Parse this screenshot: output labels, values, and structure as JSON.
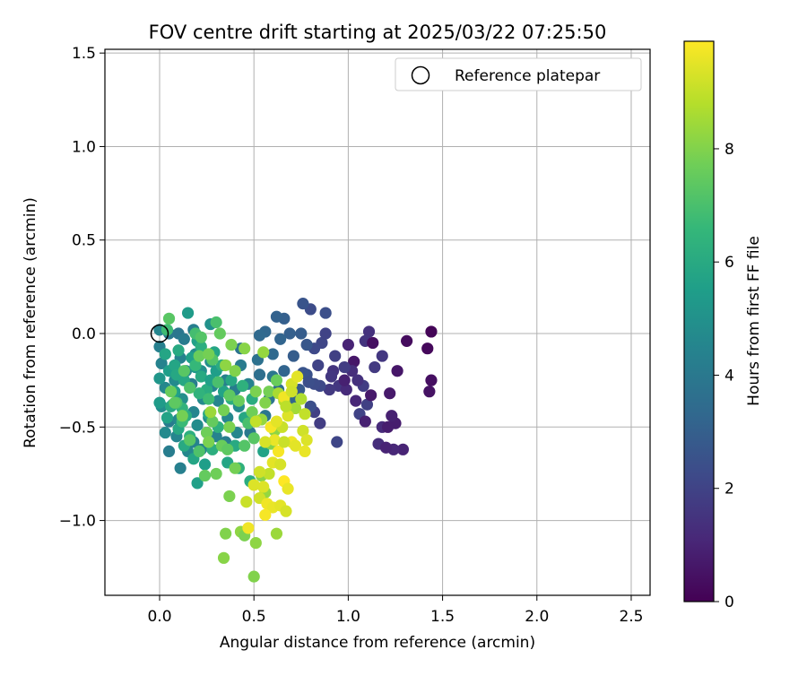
{
  "chart_data": {
    "type": "scatter",
    "title": "FOV centre drift starting at 2025/03/22 07:25:50",
    "xlabel": "Angular distance from reference (arcmin)",
    "ylabel": "Rotation from reference (arcmin)",
    "xlim": [
      -0.29,
      2.6
    ],
    "ylim": [
      -1.4,
      1.52
    ],
    "xticks": [
      0.0,
      0.5,
      1.0,
      1.5,
      2.0,
      2.5
    ],
    "xtick_labels": [
      "0.0",
      "0.5",
      "1.0",
      "1.5",
      "2.0",
      "2.5"
    ],
    "yticks": [
      -1.0,
      -0.5,
      0.0,
      0.5,
      1.0,
      1.5
    ],
    "ytick_labels": [
      "−1.0",
      "−0.5",
      "0.0",
      "0.5",
      "1.0",
      "1.5"
    ],
    "grid": true,
    "legend": {
      "position": "top-right",
      "entries": [
        "Reference platepar"
      ]
    },
    "reference_point": {
      "x": 0.0,
      "y": 0.0,
      "label": "Reference platepar"
    },
    "colorbar": {
      "label": "Hours from first FF file",
      "colormap": "viridis",
      "range": [
        0,
        9.9
      ],
      "ticks": [
        0,
        2,
        4,
        6,
        8
      ],
      "tick_labels": [
        "0",
        "2",
        "4",
        "6",
        "8"
      ]
    },
    "points": [
      [
        1.44,
        0.01,
        0.1
      ],
      [
        1.42,
        -0.08,
        0.2
      ],
      [
        1.31,
        -0.04,
        0.3
      ],
      [
        1.44,
        -0.25,
        0.4
      ],
      [
        1.43,
        -0.31,
        0.5
      ],
      [
        1.26,
        -0.2,
        0.6
      ],
      [
        1.22,
        -0.32,
        0.7
      ],
      [
        1.25,
        -0.48,
        0.8
      ],
      [
        1.23,
        -0.44,
        0.9
      ],
      [
        1.29,
        -0.62,
        1.0
      ],
      [
        1.24,
        -0.62,
        1.1
      ],
      [
        1.18,
        -0.5,
        1.2
      ],
      [
        1.16,
        -0.59,
        1.3
      ],
      [
        1.11,
        0.01,
        1.4
      ],
      [
        1.09,
        -0.04,
        1.5
      ],
      [
        1.18,
        -0.12,
        1.6
      ],
      [
        1.14,
        -0.18,
        1.7
      ],
      [
        1.08,
        -0.28,
        1.8
      ],
      [
        1.1,
        -0.38,
        1.9
      ],
      [
        1.06,
        -0.43,
        2.0
      ],
      [
        0.94,
        -0.58,
        2.1
      ],
      [
        1.13,
        -0.05,
        0.4
      ],
      [
        1.03,
        -0.15,
        0.6
      ],
      [
        1.12,
        -0.33,
        0.7
      ],
      [
        1.09,
        -0.47,
        0.9
      ],
      [
        1.04,
        -0.36,
        1.1
      ],
      [
        1.2,
        -0.61,
        1.0
      ],
      [
        1.21,
        -0.5,
        0.8
      ],
      [
        1.02,
        -0.2,
        1.3
      ],
      [
        0.95,
        -0.28,
        1.6
      ],
      [
        0.85,
        -0.48,
        1.8
      ],
      [
        0.82,
        -0.42,
        1.9
      ],
      [
        0.92,
        -0.2,
        1.5
      ],
      [
        0.86,
        -0.05,
        2.1
      ],
      [
        0.8,
        0.13,
        2.3
      ],
      [
        0.88,
        0.11,
        2.4
      ],
      [
        0.76,
        0.16,
        2.6
      ],
      [
        0.82,
        -0.08,
        2.2
      ],
      [
        0.84,
        -0.17,
        2.0
      ],
      [
        0.9,
        -0.3,
        1.7
      ],
      [
        0.78,
        -0.22,
        2.5
      ],
      [
        0.85,
        -0.28,
        2.2
      ],
      [
        0.8,
        -0.39,
        2.4
      ],
      [
        0.74,
        -0.3,
        2.8
      ],
      [
        0.71,
        -0.12,
        2.9
      ],
      [
        0.66,
        0.08,
        3.0
      ],
      [
        0.62,
        0.09,
        3.1
      ],
      [
        0.75,
        0.0,
        2.9
      ],
      [
        0.69,
        0.0,
        3.0
      ],
      [
        0.56,
        0.01,
        3.3
      ],
      [
        0.53,
        -0.01,
        3.4
      ],
      [
        0.64,
        -0.03,
        3.2
      ],
      [
        0.78,
        -0.06,
        2.7
      ],
      [
        0.6,
        -0.11,
        3.4
      ],
      [
        0.53,
        -0.22,
        3.6
      ],
      [
        0.66,
        -0.2,
        3.2
      ],
      [
        0.63,
        -0.3,
        3.5
      ],
      [
        0.66,
        -0.35,
        3.7
      ],
      [
        0.7,
        -0.35,
        3.2
      ],
      [
        0.88,
        0.0,
        2.0
      ],
      [
        0.93,
        -0.12,
        1.9
      ],
      [
        0.98,
        -0.18,
        1.8
      ],
      [
        0.91,
        -0.23,
        1.6
      ],
      [
        1.0,
        -0.06,
        1.0
      ],
      [
        0.99,
        -0.3,
        1.2
      ],
      [
        1.05,
        -0.25,
        1.4
      ],
      [
        0.98,
        -0.25,
        0.9
      ],
      [
        0.82,
        -0.27,
        2.3
      ],
      [
        0.76,
        -0.21,
        2.6
      ],
      [
        0.79,
        -0.26,
        2.4
      ],
      [
        0.0,
        0.02,
        4.5
      ],
      [
        0.05,
        0.0,
        4.0
      ],
      [
        0.1,
        0.0,
        3.9
      ],
      [
        0.18,
        0.02,
        4.2
      ],
      [
        0.27,
        0.05,
        5.0
      ],
      [
        0.13,
        -0.03,
        4.1
      ],
      [
        0.01,
        -0.16,
        4.4
      ],
      [
        0.03,
        -0.29,
        4.6
      ],
      [
        0.07,
        -0.38,
        4.3
      ],
      [
        0.05,
        -0.47,
        4.1
      ],
      [
        0.03,
        -0.53,
        4.7
      ],
      [
        0.09,
        -0.55,
        4.5
      ],
      [
        0.11,
        -0.72,
        4.3
      ],
      [
        0.05,
        -0.63,
        4.2
      ],
      [
        0.15,
        -0.63,
        4.6
      ],
      [
        0.18,
        -0.58,
        4.4
      ],
      [
        0.2,
        -0.49,
        4.8
      ],
      [
        0.25,
        -0.53,
        4.5
      ],
      [
        0.23,
        -0.35,
        4.7
      ],
      [
        0.22,
        -0.2,
        4.9
      ],
      [
        0.14,
        -0.2,
        4.6
      ],
      [
        0.11,
        -0.13,
        4.4
      ],
      [
        0.19,
        -0.11,
        4.8
      ],
      [
        0.27,
        -0.15,
        4.9
      ],
      [
        0.35,
        -0.25,
        4.3
      ],
      [
        0.31,
        -0.36,
        4.5
      ],
      [
        0.36,
        -0.45,
        4.6
      ],
      [
        0.42,
        -0.39,
        4.8
      ],
      [
        0.43,
        -0.17,
        4.1
      ],
      [
        0.47,
        -0.27,
        4.4
      ],
      [
        0.4,
        -0.3,
        4.2
      ],
      [
        0.58,
        -0.35,
        3.8
      ],
      [
        0.56,
        -0.44,
        3.9
      ],
      [
        0.48,
        -0.53,
        4.0
      ],
      [
        0.43,
        -0.08,
        3.8
      ],
      [
        0.52,
        -0.14,
        3.7
      ],
      [
        0.6,
        -0.23,
        3.9
      ],
      [
        0.1,
        -0.46,
        4.6
      ],
      [
        0.22,
        -0.62,
        4.4
      ],
      [
        0.0,
        -0.07,
        4.3
      ],
      [
        0.01,
        -0.39,
        4.8
      ],
      [
        0.08,
        -0.25,
        4.7
      ],
      [
        0.12,
        -0.35,
        4.9
      ],
      [
        0.17,
        -0.27,
        4.2
      ],
      [
        0.18,
        -0.42,
        4.5
      ],
      [
        0.26,
        -0.45,
        4.7
      ],
      [
        0.3,
        -0.55,
        4.4
      ],
      [
        0.35,
        -0.58,
        4.2
      ],
      [
        0.41,
        -0.53,
        4.6
      ],
      [
        0.28,
        -0.28,
        4.5
      ],
      [
        0.0,
        -0.24,
        5.2
      ],
      [
        0.05,
        -0.2,
        5.5
      ],
      [
        0.08,
        -0.17,
        5.8
      ],
      [
        0.1,
        -0.09,
        6.0
      ],
      [
        0.15,
        0.11,
        5.4
      ],
      [
        0.2,
        -0.04,
        5.6
      ],
      [
        0.22,
        -0.07,
        6.2
      ],
      [
        0.29,
        -0.1,
        5.8
      ],
      [
        0.3,
        -0.2,
        5.5
      ],
      [
        0.34,
        -0.31,
        5.7
      ],
      [
        0.38,
        -0.25,
        5.9
      ],
      [
        0.25,
        -0.3,
        6.1
      ],
      [
        0.19,
        -0.18,
        5.3
      ],
      [
        0.13,
        -0.25,
        5.9
      ],
      [
        0.08,
        -0.31,
        5.6
      ],
      [
        0.0,
        -0.37,
        5.4
      ],
      [
        0.04,
        -0.45,
        5.7
      ],
      [
        0.1,
        -0.51,
        5.9
      ],
      [
        0.13,
        -0.6,
        6.0
      ],
      [
        0.18,
        -0.67,
        5.8
      ],
      [
        0.2,
        -0.8,
        5.6
      ],
      [
        0.24,
        -0.7,
        5.5
      ],
      [
        0.28,
        -0.62,
        6.2
      ],
      [
        0.31,
        -0.5,
        6.3
      ],
      [
        0.26,
        -0.43,
        5.9
      ],
      [
        0.14,
        -0.44,
        6.1
      ],
      [
        0.06,
        -0.39,
        6.0
      ],
      [
        0.03,
        -0.11,
        5.8
      ],
      [
        0.17,
        -0.13,
        5.6
      ],
      [
        0.21,
        -0.32,
        6.4
      ],
      [
        0.33,
        -0.17,
        6.1
      ],
      [
        0.38,
        -0.35,
        6.2
      ],
      [
        0.45,
        -0.45,
        5.9
      ],
      [
        0.4,
        -0.6,
        6.0
      ],
      [
        0.36,
        -0.69,
        5.8
      ],
      [
        0.42,
        -0.72,
        6.3
      ],
      [
        0.48,
        -0.79,
        6.1
      ],
      [
        0.55,
        -0.63,
        5.7
      ],
      [
        0.44,
        -0.28,
        6.3
      ],
      [
        0.49,
        -0.35,
        6.1
      ],
      [
        0.09,
        -0.22,
        5.9
      ],
      [
        0.12,
        -0.4,
        6.4
      ],
      [
        0.16,
        -0.55,
        6.2
      ],
      [
        0.22,
        -0.23,
        6.0
      ],
      [
        0.27,
        -0.25,
        5.6
      ],
      [
        0.04,
        0.02,
        6.8
      ],
      [
        0.05,
        0.08,
        7.3
      ],
      [
        0.19,
        0.0,
        6.9
      ],
      [
        0.22,
        -0.02,
        7.2
      ],
      [
        0.3,
        0.06,
        7.0
      ],
      [
        0.32,
        0.0,
        7.5
      ],
      [
        0.28,
        -0.14,
        7.2
      ],
      [
        0.31,
        -0.26,
        7.0
      ],
      [
        0.37,
        -0.33,
        7.4
      ],
      [
        0.42,
        -0.36,
        7.6
      ],
      [
        0.26,
        -0.35,
        6.8
      ],
      [
        0.19,
        -0.17,
        6.6
      ],
      [
        0.16,
        -0.29,
        7.1
      ],
      [
        0.09,
        -0.37,
        7.0
      ],
      [
        0.12,
        -0.47,
        6.7
      ],
      [
        0.16,
        -0.57,
        7.3
      ],
      [
        0.21,
        -0.63,
        7.1
      ],
      [
        0.25,
        -0.53,
        7.7
      ],
      [
        0.28,
        -0.47,
        7.5
      ],
      [
        0.34,
        -0.41,
        7.8
      ],
      [
        0.37,
        -0.5,
        7.9
      ],
      [
        0.33,
        -0.6,
        7.6
      ],
      [
        0.36,
        -0.62,
        7.4
      ],
      [
        0.45,
        -0.6,
        7.2
      ],
      [
        0.47,
        -0.48,
        7.0
      ],
      [
        0.5,
        -0.56,
        7.3
      ],
      [
        0.49,
        -0.42,
        7.7
      ],
      [
        0.51,
        -0.31,
        7.9
      ],
      [
        0.56,
        -0.37,
        8.0
      ],
      [
        0.58,
        -0.31,
        7.8
      ],
      [
        0.62,
        -0.25,
        7.6
      ],
      [
        0.61,
        -0.52,
        8.2
      ],
      [
        0.59,
        -0.59,
        8.0
      ],
      [
        0.54,
        -0.46,
        8.3
      ],
      [
        0.4,
        -0.72,
        7.8
      ],
      [
        0.37,
        -0.87,
        7.9
      ],
      [
        0.43,
        -1.06,
        8.2
      ],
      [
        0.35,
        -1.07,
        8.0
      ],
      [
        0.34,
        -1.2,
        8.1
      ],
      [
        0.45,
        -1.08,
        7.9
      ],
      [
        0.62,
        -1.07,
        8.4
      ],
      [
        0.51,
        -1.12,
        8.2
      ],
      [
        0.5,
        -1.3,
        8.0
      ],
      [
        0.56,
        -0.85,
        8.3
      ],
      [
        0.54,
        -0.76,
        8.1
      ],
      [
        0.3,
        -0.75,
        7.7
      ],
      [
        0.24,
        -0.76,
        7.5
      ],
      [
        0.26,
        -0.58,
        7.9
      ],
      [
        0.27,
        -0.42,
        8.4
      ],
      [
        0.12,
        -0.44,
        7.8
      ],
      [
        0.08,
        -0.37,
        7.4
      ],
      [
        0.06,
        -0.31,
        7.6
      ],
      [
        0.13,
        -0.2,
        7.3
      ],
      [
        0.21,
        -0.12,
        7.6
      ],
      [
        0.26,
        -0.11,
        7.8
      ],
      [
        0.35,
        -0.17,
        8.2
      ],
      [
        0.4,
        -0.2,
        8.0
      ],
      [
        0.55,
        -0.1,
        8.3
      ],
      [
        0.45,
        -0.08,
        8.1
      ],
      [
        0.38,
        -0.06,
        7.9
      ],
      [
        0.63,
        -0.32,
        8.6
      ],
      [
        0.66,
        -0.36,
        8.8
      ],
      [
        0.72,
        -0.4,
        8.5
      ],
      [
        0.75,
        -0.35,
        8.7
      ],
      [
        0.77,
        -0.43,
        9.0
      ],
      [
        0.7,
        -0.27,
        9.3
      ],
      [
        0.73,
        -0.23,
        9.5
      ],
      [
        0.66,
        -0.34,
        9.7
      ],
      [
        0.68,
        -0.44,
        9.4
      ],
      [
        0.65,
        -0.5,
        9.1
      ],
      [
        0.61,
        -0.57,
        9.6
      ],
      [
        0.63,
        -0.63,
        9.8
      ],
      [
        0.6,
        -0.69,
        9.5
      ],
      [
        0.64,
        -0.7,
        9.3
      ],
      [
        0.58,
        -0.75,
        9.0
      ],
      [
        0.55,
        -0.82,
        9.4
      ],
      [
        0.53,
        -0.88,
        9.2
      ],
      [
        0.57,
        -0.91,
        9.7
      ],
      [
        0.6,
        -0.93,
        9.6
      ],
      [
        0.56,
        -0.97,
        9.8
      ],
      [
        0.64,
        -0.92,
        9.5
      ],
      [
        0.67,
        -0.95,
        9.3
      ],
      [
        0.66,
        -0.79,
        9.9
      ],
      [
        0.68,
        -0.83,
        9.6
      ],
      [
        0.7,
        -0.58,
        9.7
      ],
      [
        0.72,
        -0.6,
        9.5
      ],
      [
        0.76,
        -0.52,
        9.2
      ],
      [
        0.78,
        -0.57,
        9.4
      ],
      [
        0.77,
        -0.63,
        9.6
      ],
      [
        0.46,
        -0.9,
        9.1
      ],
      [
        0.5,
        -0.81,
        9.4
      ],
      [
        0.47,
        -1.04,
        9.7
      ],
      [
        0.53,
        -0.74,
        9.2
      ],
      [
        0.51,
        -0.47,
        9.0
      ],
      [
        0.56,
        -0.58,
        9.3
      ],
      [
        0.59,
        -0.5,
        9.8
      ],
      [
        0.62,
        -0.47,
        9.5
      ],
      [
        0.66,
        -0.58,
        9.1
      ],
      [
        0.7,
        -0.31,
        9.2
      ],
      [
        0.67,
        -0.39,
        8.9
      ]
    ]
  }
}
